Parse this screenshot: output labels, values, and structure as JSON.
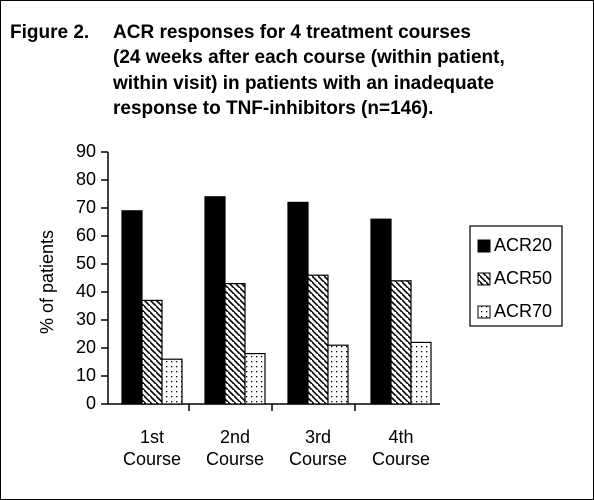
{
  "chart_data": {
    "type": "bar",
    "figure_label": "Figure 2.",
    "title_lines": [
      "ACR responses for 4 treatment courses",
      "(24 weeks after each course (within patient,",
      "within visit) in patients with an inadequate",
      "response to TNF-inhibitors (n=146)."
    ],
    "y_label": "% of patients",
    "categories": [
      "1st Course",
      "2nd Course",
      "3rd Course",
      "4th Course"
    ],
    "series": [
      {
        "name": "ACR20",
        "color": "#000000",
        "pattern": "solid",
        "values": [
          69,
          74,
          72,
          66
        ]
      },
      {
        "name": "ACR50",
        "color": "#000000",
        "pattern": "hatch",
        "values": [
          37,
          43,
          46,
          44
        ]
      },
      {
        "name": "ACR70",
        "color": "#000000",
        "pattern": "dots",
        "values": [
          16,
          18,
          21,
          22
        ]
      }
    ],
    "ylim": [
      0,
      90
    ],
    "yticks": [
      0,
      10,
      20,
      30,
      40,
      50,
      60,
      70,
      80,
      90
    ],
    "legend": "right"
  }
}
